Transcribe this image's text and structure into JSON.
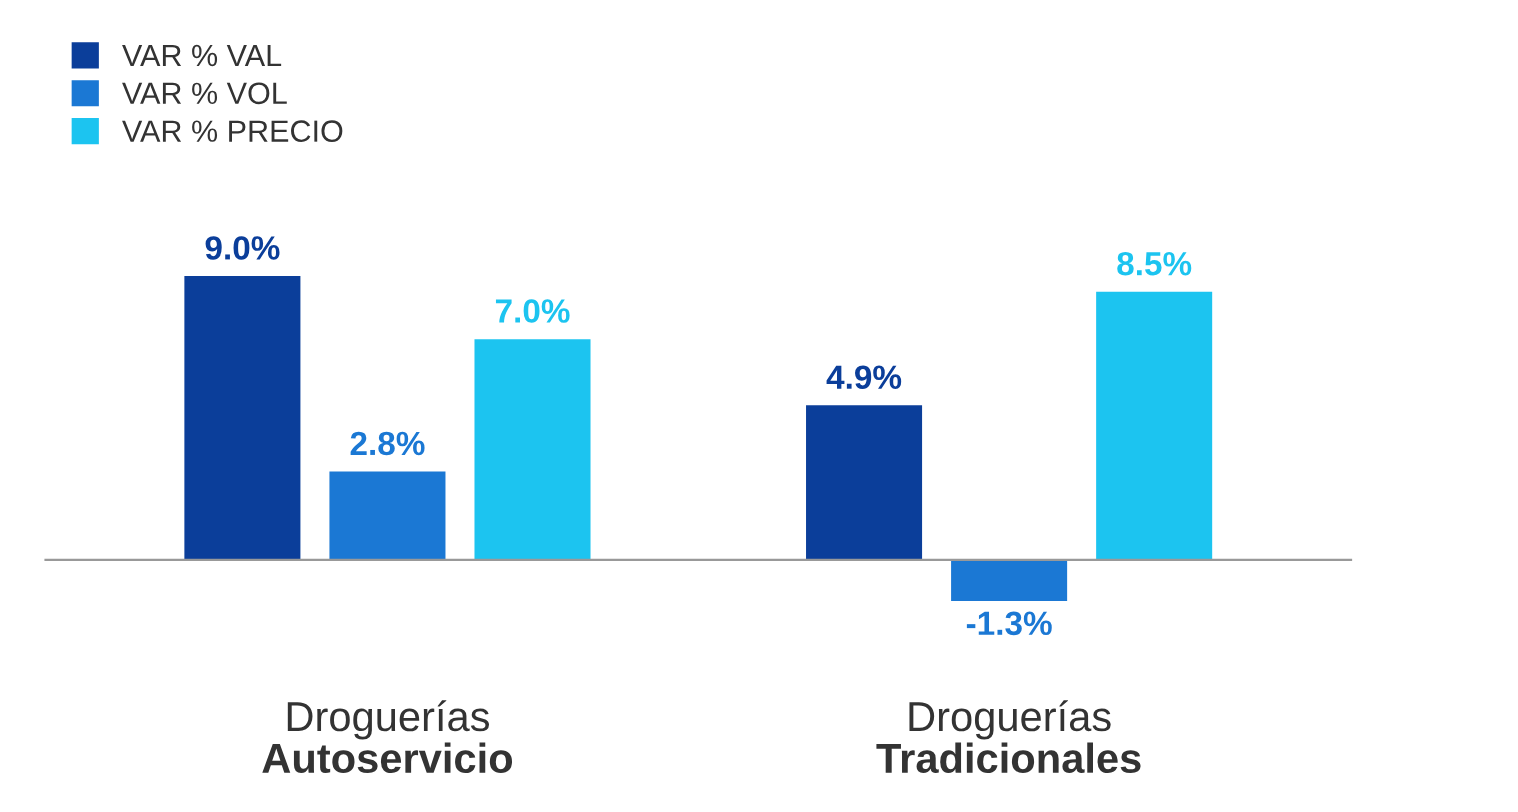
{
  "chart_data": {
    "type": "bar",
    "categories": [
      "Droguerías\nAutoservicio",
      "Droguerías\nTradicionales"
    ],
    "series": [
      {
        "name": "VAR % VAL",
        "color": "#0b3e9a",
        "values": [
          9.0,
          4.9
        ],
        "value_labels": [
          "9.0%",
          "4.9%"
        ]
      },
      {
        "name": "VAR % VOL",
        "color": "#1b78d4",
        "values": [
          2.8,
          -1.3
        ],
        "value_labels": [
          "2.8%",
          "-1.3%"
        ]
      },
      {
        "name": "VAR % PRECIO",
        "color": "#1cc4f0",
        "values": [
          7.0,
          8.5
        ],
        "value_labels": [
          "7.0%",
          "8.5%"
        ]
      }
    ],
    "legend": "top left",
    "grid": false
  }
}
